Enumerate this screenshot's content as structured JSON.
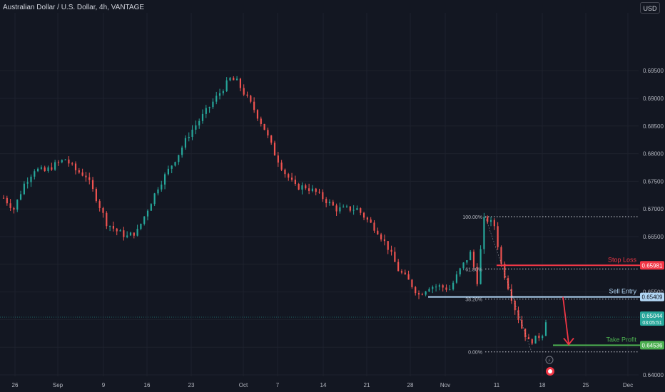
{
  "header": {
    "title": "Australian Dollar / U.S. Dollar, 4h, VANTAGE",
    "currency_button": "USD"
  },
  "colors": {
    "background": "#131722",
    "up": "#26a69a",
    "down": "#ef5350",
    "grid": "#1e222d",
    "axis_text": "#b2b5be",
    "stop_loss": "#f23645",
    "sell_entry": "#b2d7f5",
    "take_profit": "#4caf50",
    "fib": "#d1d4dc"
  },
  "chart_data": {
    "type": "candlestick",
    "y_ticks": [
      "0.69500",
      "0.69000",
      "0.68500",
      "0.68000",
      "0.67500",
      "0.67000",
      "0.66500",
      "0.66000",
      "0.65500",
      "0.65000",
      "0.64500",
      "0.64000"
    ],
    "x_ticks": [
      "26",
      "Sep",
      "9",
      "16",
      "23",
      "Oct",
      "7",
      "14",
      "21",
      "28",
      "Nov",
      "11",
      "18",
      "25",
      "Dec"
    ],
    "close_path": [
      [
        0,
        0.672
      ],
      [
        3,
        0.67
      ],
      [
        6,
        0.6745
      ],
      [
        9,
        0.6772
      ],
      [
        12,
        0.6768
      ],
      [
        15,
        0.678
      ],
      [
        18,
        0.679
      ],
      [
        21,
        0.677
      ],
      [
        24,
        0.676
      ],
      [
        27,
        0.672
      ],
      [
        30,
        0.6675
      ],
      [
        33,
        0.666
      ],
      [
        36,
        0.665
      ],
      [
        39,
        0.666
      ],
      [
        42,
        0.67
      ],
      [
        45,
        0.674
      ],
      [
        48,
        0.677
      ],
      [
        51,
        0.68
      ],
      [
        54,
        0.6835
      ],
      [
        57,
        0.686
      ],
      [
        60,
        0.6885
      ],
      [
        63,
        0.691
      ],
      [
        66,
        0.6935
      ],
      [
        68,
        0.693
      ],
      [
        70,
        0.691
      ],
      [
        73,
        0.688
      ],
      [
        76,
        0.6845
      ],
      [
        79,
        0.68
      ],
      [
        82,
        0.6765
      ],
      [
        85,
        0.674
      ],
      [
        88,
        0.674
      ],
      [
        91,
        0.673
      ],
      [
        94,
        0.6715
      ],
      [
        97,
        0.67
      ],
      [
        100,
        0.67
      ],
      [
        103,
        0.67
      ],
      [
        106,
        0.668
      ],
      [
        109,
        0.666
      ],
      [
        112,
        0.663
      ],
      [
        115,
        0.659
      ],
      [
        118,
        0.657
      ],
      [
        121,
        0.6545
      ],
      [
        124,
        0.656
      ],
      [
        127,
        0.656
      ],
      [
        130,
        0.6555
      ],
      [
        133,
        0.659
      ],
      [
        136,
        0.662
      ],
      [
        138,
        0.657
      ],
      [
        140,
        0.668
      ],
      [
        141,
        0.668
      ],
      [
        143,
        0.667
      ],
      [
        145,
        0.66
      ],
      [
        147,
        0.656
      ],
      [
        149,
        0.652
      ],
      [
        151,
        0.6485
      ],
      [
        153,
        0.646
      ],
      [
        155,
        0.6465
      ],
      [
        157,
        0.6475
      ],
      [
        158,
        0.65
      ]
    ],
    "levels": [
      {
        "name": "Stop Loss",
        "price": 0.65981,
        "price_label": "0.65981"
      },
      {
        "name": "Sell Entry",
        "price": 0.65409,
        "price_label": "0.65409"
      },
      {
        "name": "Take Profit",
        "price": 0.64536,
        "price_label": "0.64536"
      }
    ],
    "last_price": {
      "price": 0.65044,
      "price_label": "0.65044",
      "countdown": "03:05:51"
    },
    "fib_levels": [
      {
        "label": "100.00%",
        "price": 0.66861
      },
      {
        "label": "61.80%",
        "price": 0.65916
      },
      {
        "label": "38.20%",
        "price": 0.65371
      },
      {
        "label": "0.00%",
        "price": 0.64416
      }
    ]
  }
}
